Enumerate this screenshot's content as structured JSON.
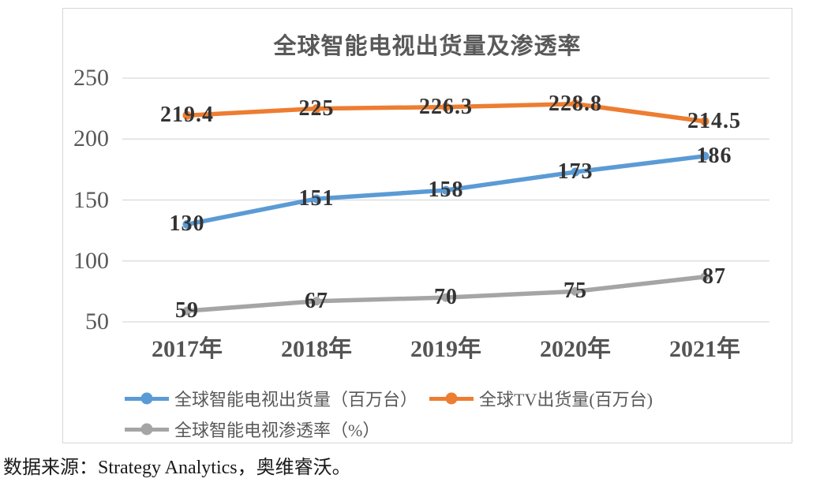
{
  "chart": {
    "title": "全球智能电视出货量及渗透率",
    "source_note": "数据来源：Strategy Analytics，奥维睿沃。"
  },
  "chart_data": {
    "type": "line",
    "title": "全球智能电视出货量及渗透率",
    "categories": [
      "2017年",
      "2018年",
      "2019年",
      "2020年",
      "2021年"
    ],
    "series": [
      {
        "name": "全球智能电视出货量（百万台）",
        "values": [
          130,
          151,
          158,
          173,
          186
        ],
        "color": "#5B9BD5"
      },
      {
        "name": "全球TV出货量(百万台)",
        "values": [
          219.4,
          225,
          226.3,
          228.8,
          214.5
        ],
        "color": "#ED7D31"
      },
      {
        "name": "全球智能电视渗透率（%）",
        "values": [
          59,
          67,
          70,
          75,
          87
        ],
        "color": "#A5A5A5"
      }
    ],
    "y_ticks": [
      50,
      100,
      150,
      200,
      250
    ],
    "ylim": [
      50,
      250
    ],
    "xlabel": "",
    "ylabel": "",
    "grid": true,
    "grid_color": "#d9d9d9",
    "data_labels": true,
    "legend_position": "bottom"
  }
}
